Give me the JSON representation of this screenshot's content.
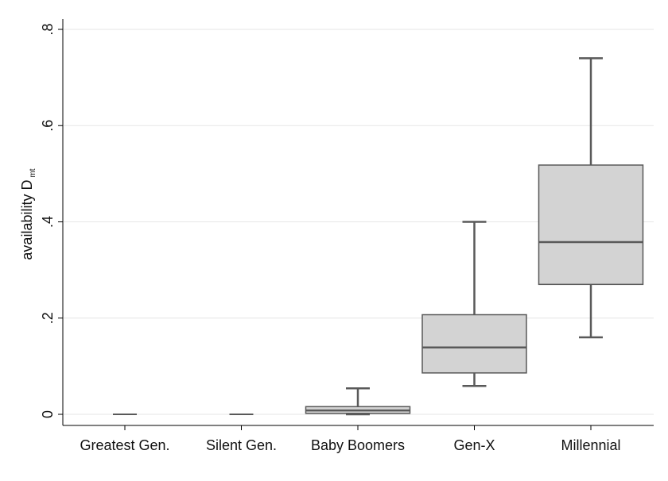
{
  "chart_data": {
    "type": "boxplot",
    "title": "",
    "xlabel": "",
    "ylabel": "availability D",
    "ylabel_subscript": "mt",
    "ylim": [
      0,
      0.8
    ],
    "yticks": [
      0,
      0.2,
      0.4,
      0.6,
      0.8
    ],
    "ytick_labels": [
      "0",
      ".2",
      ".4",
      ".6",
      ".8"
    ],
    "grid": true,
    "categories": [
      "Greatest Gen.",
      "Silent Gen.",
      "Baby Boomers",
      "Gen-X",
      "Millennial"
    ],
    "boxes": [
      {
        "category": "Greatest Gen.",
        "whisker_low": 0,
        "q1": 0,
        "median": 0,
        "q3": 0,
        "whisker_high": 0
      },
      {
        "category": "Silent Gen.",
        "whisker_low": 0,
        "q1": 0,
        "median": 0,
        "q3": 0,
        "whisker_high": 0
      },
      {
        "category": "Baby Boomers",
        "whisker_low": 0,
        "q1": 0.002,
        "median": 0.008,
        "q3": 0.016,
        "whisker_high": 0.054
      },
      {
        "category": "Gen-X",
        "whisker_low": 0.059,
        "q1": 0.086,
        "median": 0.139,
        "q3": 0.207,
        "whisker_high": 0.4
      },
      {
        "category": "Millennial",
        "whisker_low": 0.16,
        "q1": 0.27,
        "median": 0.358,
        "q3": 0.518,
        "whisker_high": 0.74
      }
    ],
    "colors": {
      "box_fill": "#d3d3d3",
      "box_stroke": "#595959",
      "median": "#595959",
      "whisker": "#595959",
      "grid": "#e6e6e6",
      "axis": "#000000"
    }
  }
}
